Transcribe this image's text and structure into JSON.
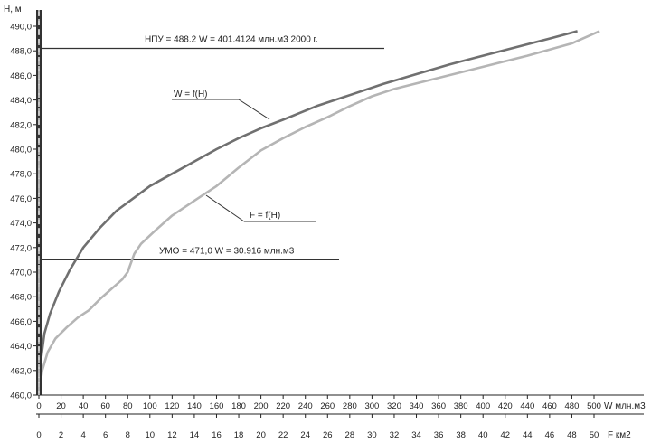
{
  "chart_data": {
    "type": "line",
    "ylabel": "H, м",
    "x_top_label": "W млн.м3",
    "x_bottom_label": "F км2",
    "y_ticks": [
      "460,0",
      "462,0",
      "464,0",
      "466,0",
      "468,0",
      "470,0",
      "472,0",
      "474,0",
      "476,0",
      "478,0",
      "480,0",
      "482,0",
      "484,0",
      "486,0",
      "488,0",
      "490,0"
    ],
    "ylim": [
      460,
      490.8
    ],
    "w_ticks": [
      "0",
      "20",
      "40",
      "60",
      "80",
      "100",
      "120",
      "140",
      "160",
      "180",
      "200",
      "220",
      "240",
      "260",
      "280",
      "300",
      "320",
      "340",
      "360",
      "380",
      "400",
      "420",
      "440",
      "460",
      "480",
      "500"
    ],
    "wlim": [
      0,
      520
    ],
    "f_ticks": [
      "0",
      "2",
      "4",
      "6",
      "8",
      "10",
      "12",
      "14",
      "16",
      "18",
      "20",
      "22",
      "24",
      "26",
      "28",
      "30",
      "32",
      "34",
      "36",
      "38",
      "40",
      "42",
      "44",
      "46",
      "48",
      "50"
    ],
    "flim": [
      0,
      52
    ],
    "series": [
      {
        "name": "W = f(H)",
        "axis": "W",
        "color": "#707070",
        "points": [
          [
            0,
            460.2
          ],
          [
            2,
            463.0
          ],
          [
            5,
            465.0
          ],
          [
            10,
            466.6
          ],
          [
            18,
            468.4
          ],
          [
            28,
            470.2
          ],
          [
            40,
            472.0
          ],
          [
            55,
            473.6
          ],
          [
            70,
            475.0
          ],
          [
            85,
            476.0
          ],
          [
            100,
            477.0
          ],
          [
            120,
            478.0
          ],
          [
            140,
            479.0
          ],
          [
            160,
            480.0
          ],
          [
            180,
            480.9
          ],
          [
            200,
            481.7
          ],
          [
            220,
            482.4
          ],
          [
            250,
            483.5
          ],
          [
            280,
            484.4
          ],
          [
            310,
            485.3
          ],
          [
            340,
            486.1
          ],
          [
            370,
            486.9
          ],
          [
            400,
            487.6
          ],
          [
            430,
            488.3
          ],
          [
            460,
            489.0
          ],
          [
            485,
            489.6
          ]
        ]
      },
      {
        "name": "F = f(H)",
        "axis": "F",
        "color": "#b5b5b5",
        "points": [
          [
            0,
            460.2
          ],
          [
            0.3,
            462.0
          ],
          [
            0.8,
            463.5
          ],
          [
            1.5,
            464.6
          ],
          [
            2.5,
            465.5
          ],
          [
            3.5,
            466.3
          ],
          [
            4.5,
            466.9
          ],
          [
            5.5,
            467.8
          ],
          [
            6.5,
            468.6
          ],
          [
            7.5,
            469.4
          ],
          [
            8.0,
            470.0
          ],
          [
            8.6,
            471.5
          ],
          [
            9.2,
            472.3
          ],
          [
            10.5,
            473.4
          ],
          [
            12.0,
            474.6
          ],
          [
            14.0,
            475.8
          ],
          [
            16.0,
            477.0
          ],
          [
            18.0,
            478.5
          ],
          [
            20.0,
            479.9
          ],
          [
            22.0,
            480.9
          ],
          [
            24.0,
            481.8
          ],
          [
            26.0,
            482.6
          ],
          [
            28.0,
            483.5
          ],
          [
            30.0,
            484.3
          ],
          [
            32.0,
            484.9
          ],
          [
            36.0,
            485.8
          ],
          [
            40.0,
            486.7
          ],
          [
            44.0,
            487.6
          ],
          [
            48.0,
            488.6
          ],
          [
            50.5,
            489.6
          ]
        ]
      }
    ],
    "annotations": {
      "npu_text": "НПУ = 488.2 W = 401.4124 млн.м3 2000 г.",
      "npu_level": 488.2,
      "umo_text": "УМО = 471,0 W = 30.916 млн.м3",
      "umo_level": 471.0,
      "w_label": "W = f(H)",
      "f_label": "F = f(H)"
    },
    "grid": false
  }
}
